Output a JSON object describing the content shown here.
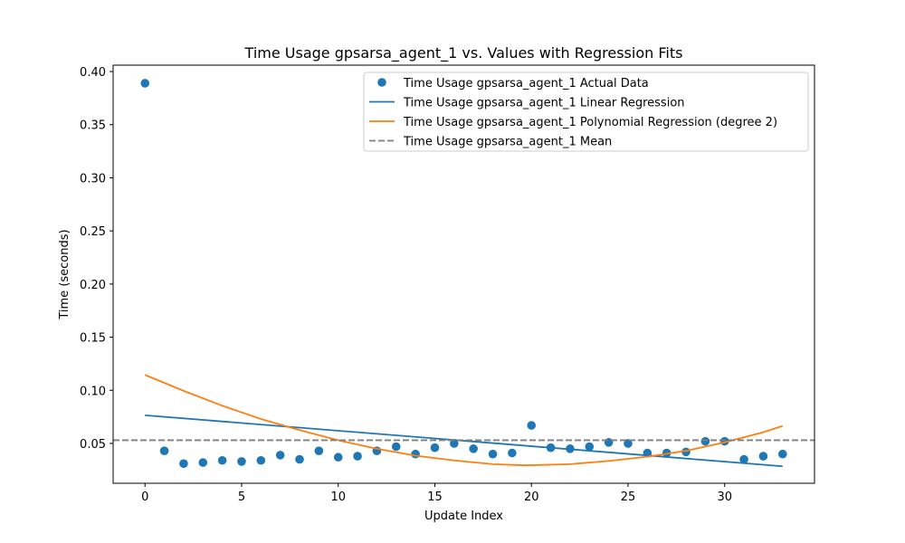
{
  "chart_data": {
    "type": "scatter",
    "title": "Time Usage gpsarsa_agent_1 vs. Values with Regression Fits",
    "xlabel": "Update Index",
    "ylabel": "Time (seconds)",
    "xlim": [
      -1.65,
      34.65
    ],
    "ylim": [
      0.0125,
      0.406
    ],
    "xticks": [
      "0",
      "5",
      "10",
      "15",
      "20",
      "25",
      "30"
    ],
    "yticks": [
      "0.05",
      "0.10",
      "0.15",
      "0.20",
      "0.25",
      "0.30",
      "0.35",
      "0.40"
    ],
    "grid": false,
    "legend_position": "top-right",
    "series": [
      {
        "name": "Time Usage gpsarsa_agent_1 Actual Data",
        "kind": "scatter",
        "color": "#1f77b4",
        "x": [
          0,
          1,
          2,
          3,
          4,
          5,
          6,
          7,
          8,
          9,
          10,
          11,
          12,
          13,
          14,
          15,
          16,
          17,
          18,
          19,
          20,
          21,
          22,
          23,
          24,
          25,
          26,
          27,
          28,
          29,
          30,
          31,
          32,
          33
        ],
        "y": [
          0.389,
          0.043,
          0.031,
          0.032,
          0.034,
          0.033,
          0.034,
          0.039,
          0.035,
          0.043,
          0.037,
          0.038,
          0.043,
          0.047,
          0.04,
          0.046,
          0.05,
          0.045,
          0.04,
          0.041,
          0.067,
          0.046,
          0.045,
          0.047,
          0.051,
          0.05,
          0.041,
          0.041,
          0.042,
          0.052,
          0.052,
          0.035,
          0.038,
          0.04
        ]
      },
      {
        "name": "Time Usage gpsarsa_agent_1 Linear Regression",
        "kind": "line",
        "color": "#1f77b4",
        "x": [
          0,
          33
        ],
        "y": [
          0.0765,
          0.0285
        ]
      },
      {
        "name": "Time Usage gpsarsa_agent_1 Polynomial Regression (degree 2)",
        "kind": "line",
        "color": "#ff7f0e",
        "x": [
          0,
          2,
          4,
          6,
          8,
          10,
          12,
          14,
          16,
          18,
          19.5,
          20,
          22,
          24,
          26,
          28,
          30,
          32,
          33
        ],
        "y": [
          0.1145,
          0.0995,
          0.0855,
          0.073,
          0.0625,
          0.053,
          0.045,
          0.0385,
          0.034,
          0.0305,
          0.0295,
          0.0295,
          0.0305,
          0.0335,
          0.0375,
          0.043,
          0.051,
          0.0605,
          0.0665
        ]
      },
      {
        "name": "Time Usage gpsarsa_agent_1 Mean",
        "kind": "hline",
        "color": "#7f7f7f",
        "y": 0.053
      }
    ]
  }
}
